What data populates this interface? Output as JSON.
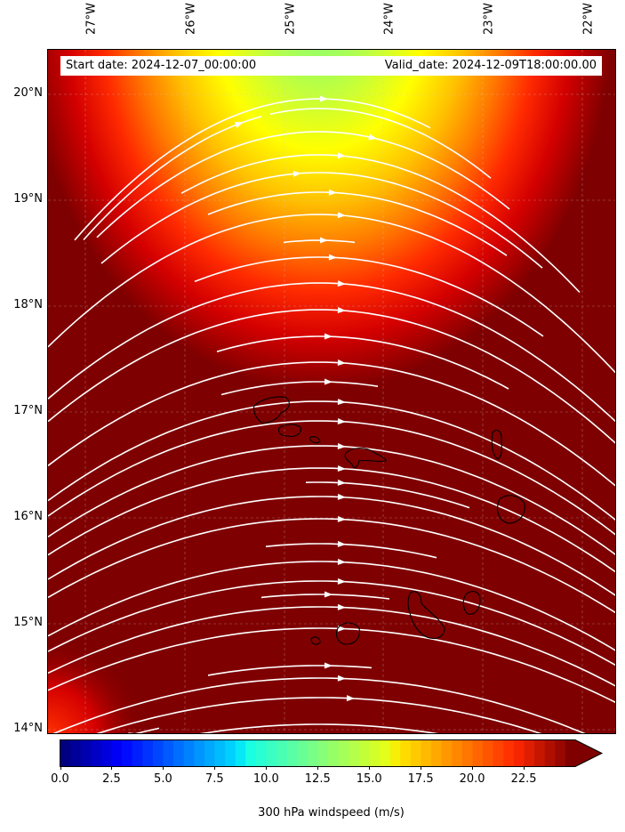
{
  "map": {
    "start_date": "Start date: 2024-12-07_00:00:00",
    "valid_date": "Valid_date: 2024-12-09T18:00:00.00",
    "lon_labels": [
      "27°W",
      "26°W",
      "25°W",
      "24°W",
      "23°W",
      "22°W"
    ],
    "lat_labels": [
      "20°N",
      "19°N",
      "18°N",
      "17°N",
      "16°N",
      "15°N",
      "14°N"
    ],
    "colors": {
      "max_wind": "#7f0000",
      "streamline": "#ffffff",
      "coastline": "#000000"
    }
  },
  "colorbar": {
    "label": "300 hPa windspeed (m/s)",
    "ticks": [
      "0.0",
      "2.5",
      "5.0",
      "7.5",
      "10.0",
      "12.5",
      "15.0",
      "17.5",
      "20.0",
      "22.5"
    ],
    "range": [
      0,
      25
    ],
    "extend": "max"
  }
}
